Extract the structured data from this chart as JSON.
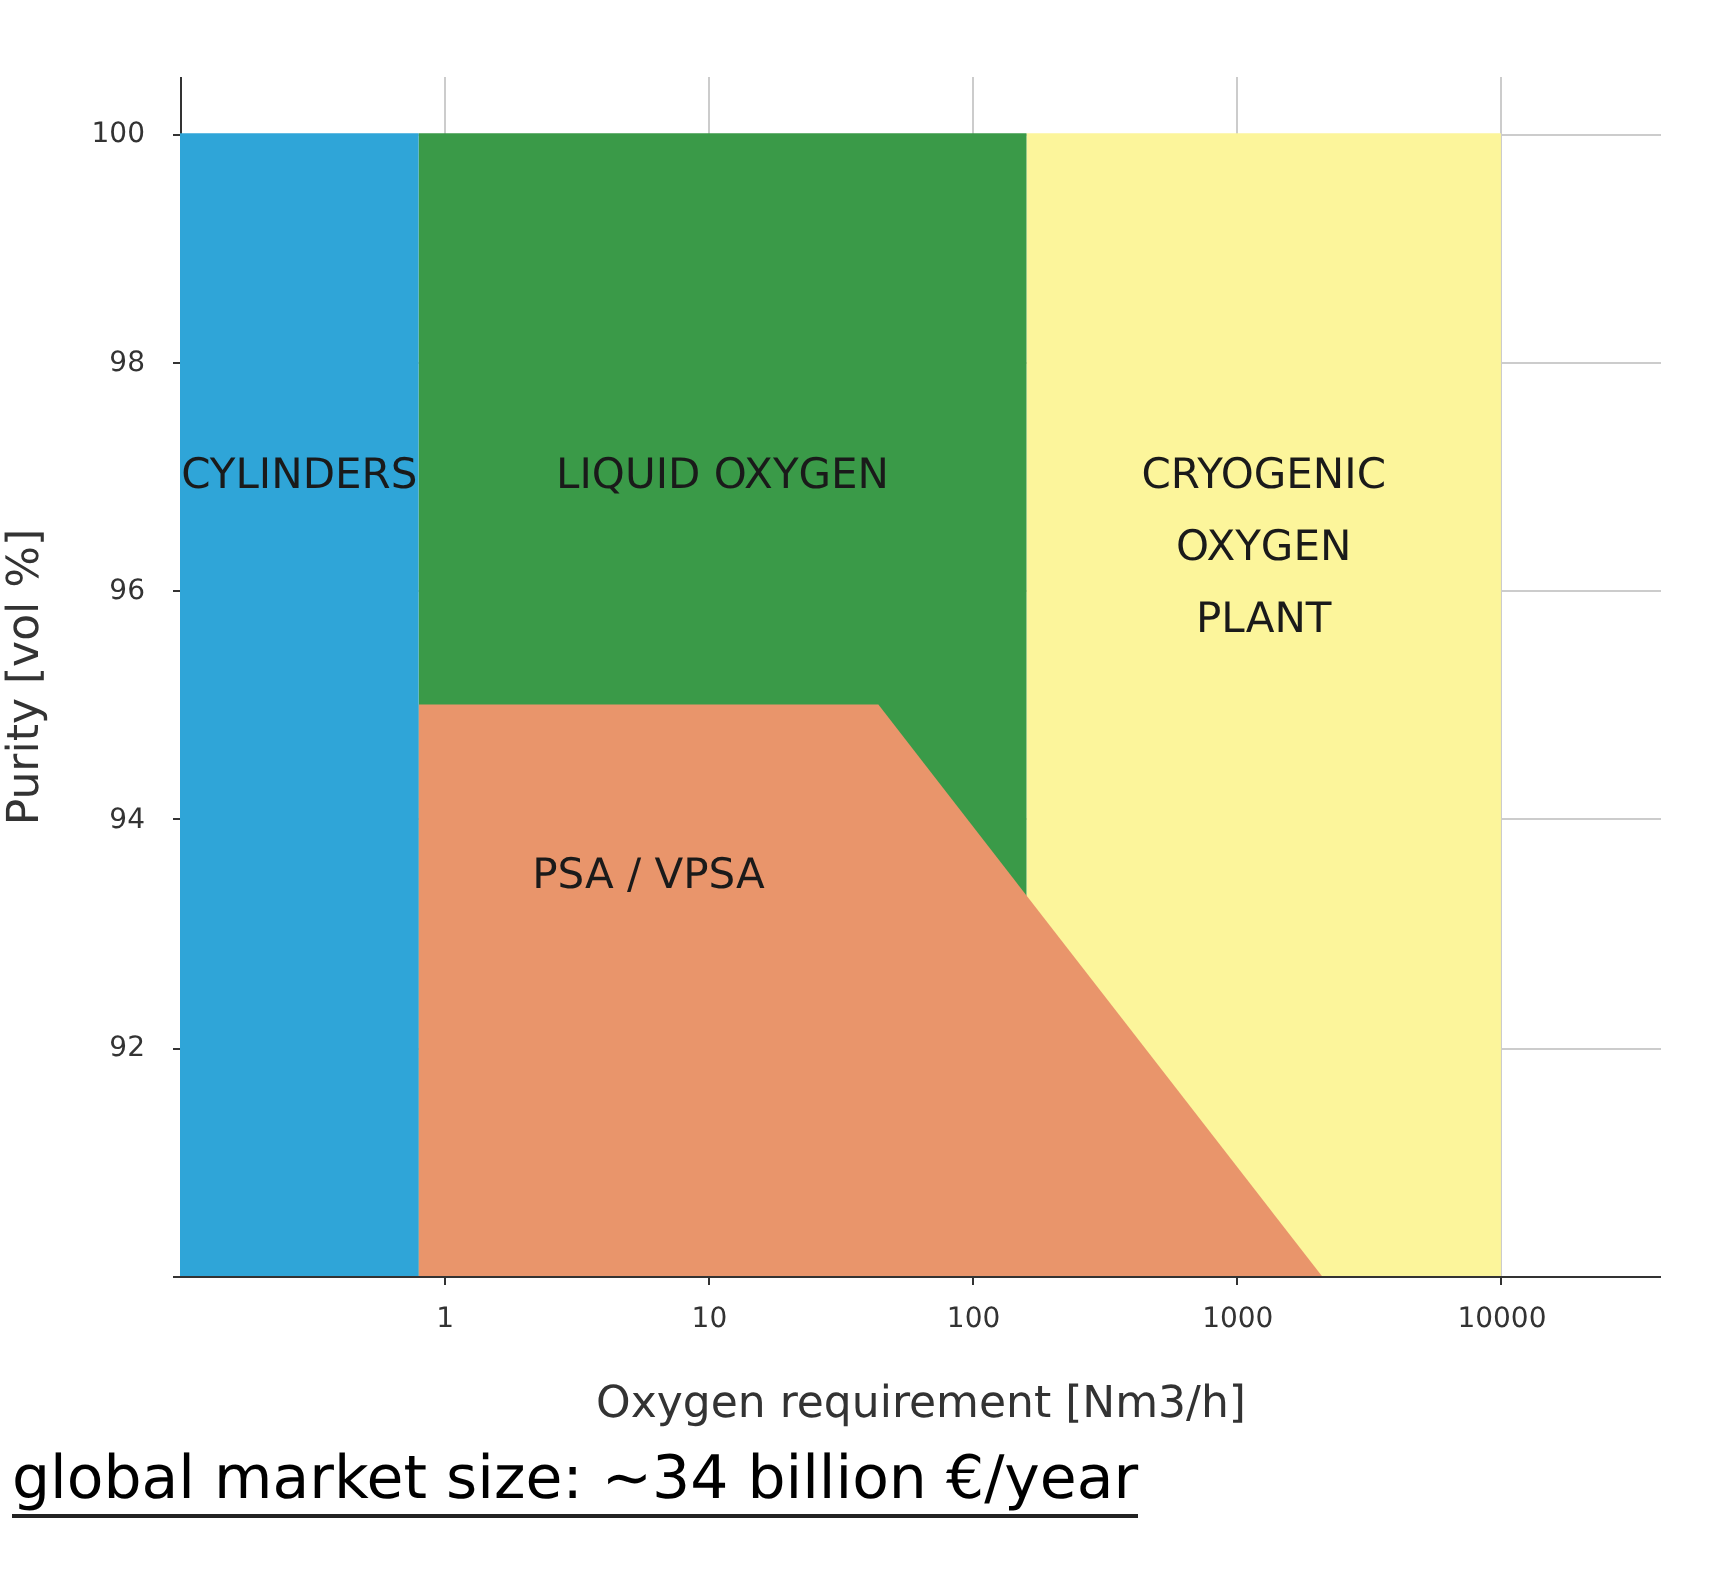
{
  "chart_data": {
    "type": "area",
    "xlabel": "Oxygen requirement [Nm3/h]",
    "ylabel": "Purity [vol %]",
    "log": "x",
    "xlim": [
      0.1,
      40000
    ],
    "xticks": [
      1,
      10,
      100,
      1000,
      10000
    ],
    "ylim": [
      90,
      100.5
    ],
    "yticks": [
      {
        "value": 90,
        "label": null
      },
      92,
      94,
      96,
      98,
      100
    ],
    "grid": true,
    "series": [
      {
        "name": "CRYOGENIC\nOXYGEN\nPLANT",
        "color": "#fcf59b",
        "x": [
          160,
          10000
        ],
        "values": [
          100,
          100
        ]
      },
      {
        "name": "LIQUID OXYGEN",
        "color": "#3a9a48",
        "x": [
          0.8,
          160
        ],
        "values": [
          100,
          100
        ]
      },
      {
        "name": "PSA / VPSA",
        "color": "#e9956b",
        "x": [
          0.8,
          44,
          2100
        ],
        "values": [
          95,
          95,
          90
        ]
      },
      {
        "name": "CYLINDERS",
        "color": "#2fa5d8",
        "x": [
          0.1,
          0.8
        ],
        "values": [
          100,
          100
        ]
      }
    ],
    "annotations": [
      "global market size: ~34 billion €/year"
    ]
  }
}
